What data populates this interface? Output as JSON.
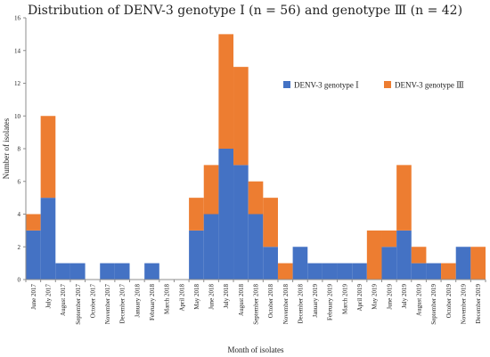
{
  "chart_data": {
    "type": "bar",
    "stacked": true,
    "title": "Distribution of DENV-3 genotype Ⅰ (n = 56) and genotype Ⅲ (n = 42)",
    "xlabel": "Month of isolates",
    "ylabel": "Number of isolates",
    "ylim": [
      0,
      16
    ],
    "yticks": [
      0,
      2,
      4,
      6,
      8,
      10,
      12,
      14,
      16
    ],
    "grid": false,
    "legend_position": "right",
    "categories": [
      "June 2017",
      "July 2017",
      "August 2017",
      "September 2017",
      "October 2017",
      "November 2017",
      "December 2017",
      "January 2018",
      "February 2018",
      "March 2018",
      "April 2018",
      "May 2018",
      "June 2018",
      "July 2018",
      "August 2018",
      "September 2018",
      "October 2018",
      "November 2018",
      "December 2018",
      "January 2019",
      "February 2019",
      "March 2019",
      "April 2019",
      "May 2019",
      "June 2019",
      "July 2019",
      "August 2019",
      "September 2019",
      "October 2019",
      "November 2019",
      "December 2019"
    ],
    "series": [
      {
        "name": "DENV-3 genotype Ⅰ",
        "color": "#4472c4",
        "values": [
          3,
          5,
          1,
          1,
          0,
          1,
          1,
          0,
          1,
          0,
          0,
          3,
          4,
          8,
          7,
          4,
          2,
          0,
          2,
          1,
          1,
          1,
          1,
          0,
          2,
          3,
          1,
          1,
          0,
          2,
          0
        ]
      },
      {
        "name": "DENV-3 genotype Ⅲ",
        "color": "#ed7d31",
        "values": [
          1,
          5,
          0,
          0,
          0,
          0,
          0,
          0,
          0,
          0,
          0,
          2,
          3,
          7,
          6,
          2,
          3,
          1,
          0,
          0,
          0,
          0,
          0,
          3,
          1,
          4,
          1,
          0,
          1,
          0,
          2
        ]
      }
    ]
  }
}
